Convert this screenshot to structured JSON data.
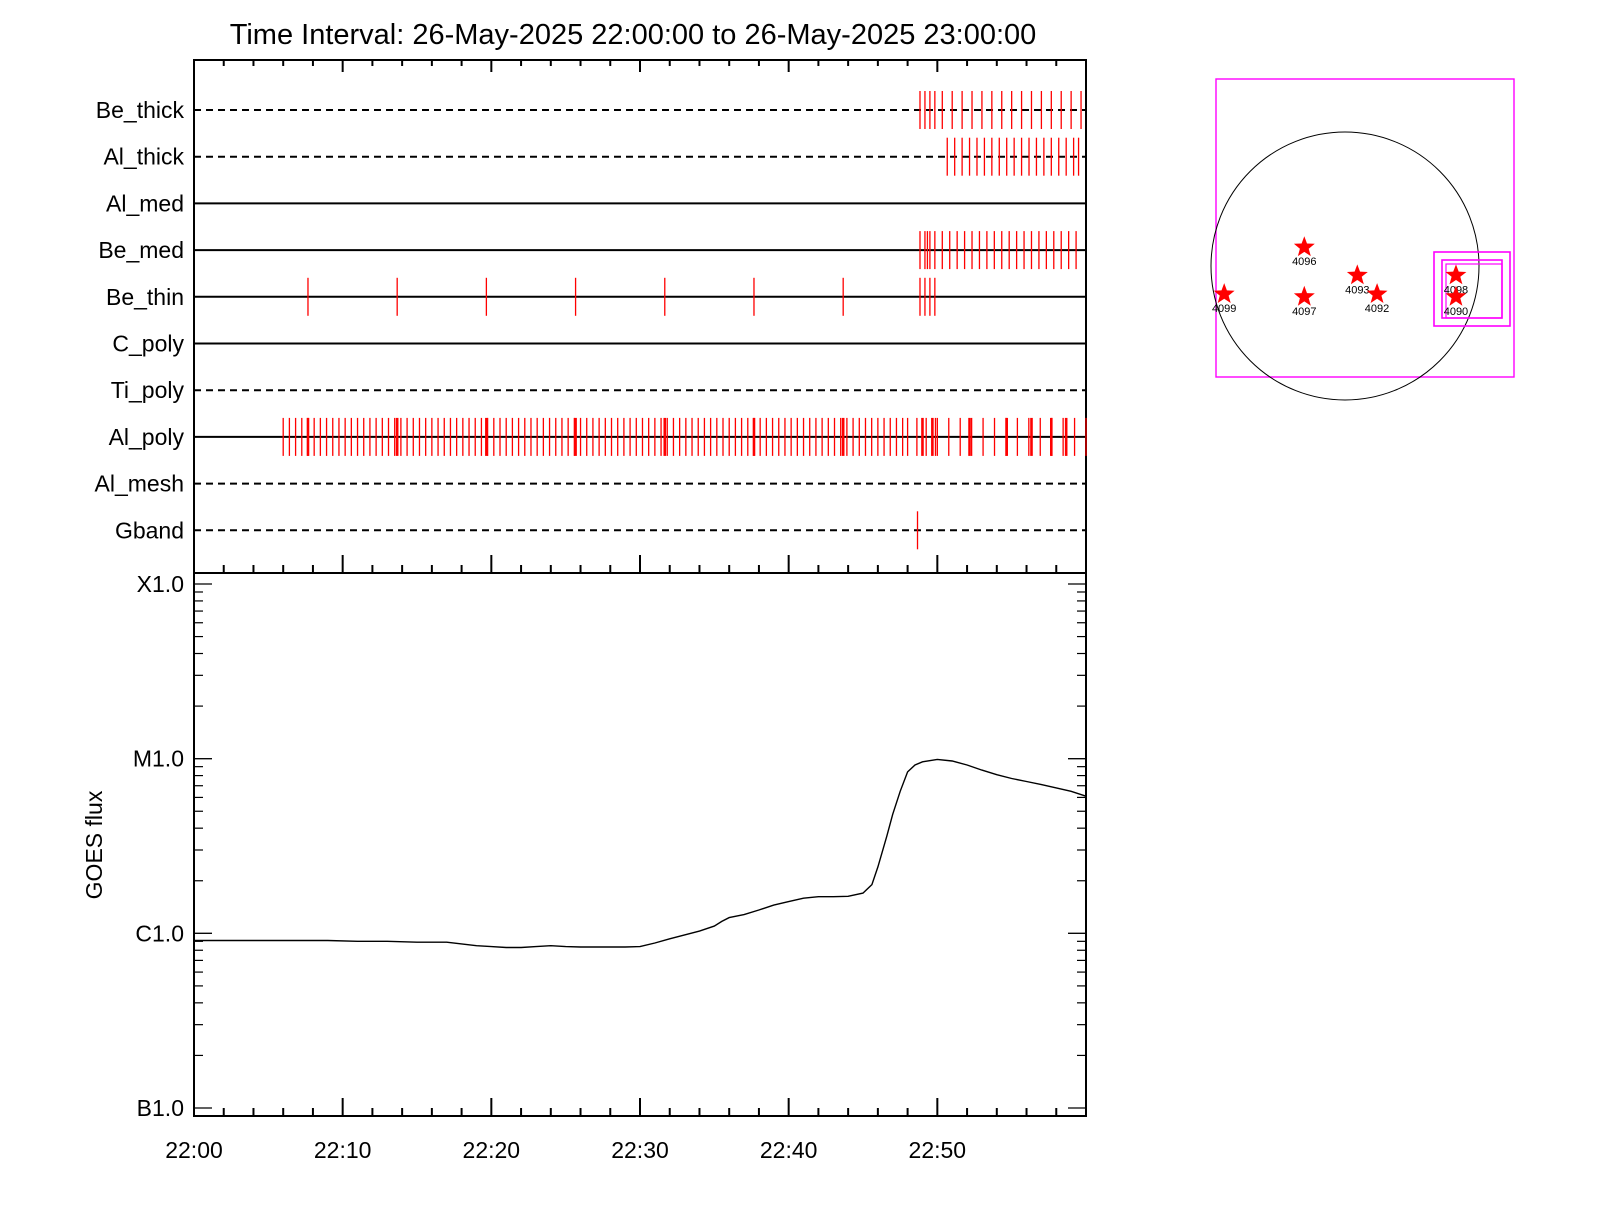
{
  "chart_data": [
    {
      "type": "timeline",
      "title": "Time Interval: 26-May-2025 22:00:00 to 26-May-2025 23:00:00",
      "x_range": [
        "22:00",
        "23:00"
      ],
      "rows": [
        {
          "label": "Be_thick",
          "line": "dashed",
          "events": [
            "22:48:50",
            "22:49:10",
            "22:49:30",
            "22:49:50",
            "22:50:20",
            "22:51:00",
            "22:51:40",
            "22:52:20",
            "22:53:00",
            "22:53:40",
            "22:54:20",
            "22:55:00",
            "22:55:40",
            "22:56:20",
            "22:57:00",
            "22:57:40",
            "22:58:20",
            "22:59:00",
            "22:59:40"
          ]
        },
        {
          "label": "Al_thick",
          "line": "dashed",
          "events": [
            "22:50:40",
            "22:51:10",
            "22:51:40",
            "22:52:10",
            "22:52:40",
            "22:53:10",
            "22:53:40",
            "22:54:10",
            "22:54:40",
            "22:55:10",
            "22:55:40",
            "22:56:10",
            "22:56:40",
            "22:57:10",
            "22:57:40",
            "22:58:10",
            "22:58:40",
            "22:59:10",
            "22:59:30"
          ]
        },
        {
          "label": "Al_med",
          "line": "solid",
          "events": []
        },
        {
          "label": "Be_med",
          "line": "solid",
          "events": [
            "22:48:50",
            "22:49:10",
            "22:49:20",
            "22:49:30",
            "22:49:50",
            "22:50:20",
            "22:50:50",
            "22:51:20",
            "22:51:50",
            "22:52:20",
            "22:52:50",
            "22:53:20",
            "22:53:50",
            "22:54:20",
            "22:54:50",
            "22:55:20",
            "22:55:50",
            "22:56:20",
            "22:56:50",
            "22:57:20",
            "22:57:50",
            "22:58:20",
            "22:58:50",
            "22:59:20"
          ]
        },
        {
          "label": "Be_thin",
          "line": "solid",
          "events": [
            "22:07:40",
            "22:13:40",
            "22:19:40",
            "22:25:40",
            "22:31:40",
            "22:37:40",
            "22:43:40",
            "22:48:50",
            "22:49:10",
            "22:49:30",
            "22:49:50"
          ]
        },
        {
          "label": "C_poly",
          "line": "solid",
          "events": []
        },
        {
          "label": "Ti_poly",
          "line": "dashed",
          "events": []
        },
        {
          "label": "Al_poly",
          "line": "solid",
          "dense_regions": [
            [
              "22:06:00",
              "22:48:00",
              24
            ],
            [
              "22:48:00",
              "22:50:00",
              16
            ],
            [
              "22:50:00",
              "23:00:00",
              13
            ]
          ],
          "emphasized": [
            "22:07:40",
            "22:13:40",
            "22:19:40",
            "22:25:40",
            "22:31:40",
            "22:37:40",
            "22:43:40",
            "22:49:00",
            "22:49:40",
            "22:52:10",
            "22:54:40",
            "22:56:20",
            "22:57:40",
            "22:58:40"
          ]
        },
        {
          "label": "Al_mesh",
          "line": "dashed",
          "events": []
        },
        {
          "label": "Gband",
          "line": "dashed",
          "events": [
            "22:48:40"
          ]
        }
      ]
    },
    {
      "type": "line",
      "ylabel": "GOES flux",
      "yscale": "log",
      "y_ticks": [
        "X1.0",
        "M1.0",
        "C1.0",
        "B1.0"
      ],
      "ylim": [
        1e-07,
        0.0001
      ],
      "x_ticks": [
        "22:00",
        "22:10",
        "22:20",
        "22:30",
        "22:40",
        "22:50"
      ],
      "x_range_min": [
        0,
        60
      ],
      "x_min": [
        0,
        3,
        5,
        7,
        9,
        11,
        13,
        15,
        17,
        18,
        19,
        20,
        21,
        22,
        23,
        24,
        25,
        26,
        27,
        28,
        29,
        30,
        31,
        32,
        33,
        34,
        35,
        35.5,
        36,
        37,
        38,
        39,
        40,
        41,
        42,
        43,
        44,
        45,
        45.6,
        46,
        46.6,
        47,
        47.5,
        48,
        48.5,
        49,
        50,
        51,
        52,
        53,
        54,
        55,
        56,
        57,
        58,
        59,
        60
      ],
      "flux": [
        9.1e-07,
        9.1e-07,
        9.1e-07,
        9.1e-07,
        9.1e-07,
        9e-07,
        9e-07,
        8.9e-07,
        8.9e-07,
        8.7e-07,
        8.5e-07,
        8.4e-07,
        8.3e-07,
        8.3e-07,
        8.4e-07,
        8.5e-07,
        8.4e-07,
        8.35e-07,
        8.35e-07,
        8.35e-07,
        8.35e-07,
        8.4e-07,
        8.8e-07,
        9.3e-07,
        9.8e-07,
        1.03e-06,
        1.1e-06,
        1.17e-06,
        1.23e-06,
        1.28e-06,
        1.36e-06,
        1.45e-06,
        1.52e-06,
        1.59e-06,
        1.62e-06,
        1.62e-06,
        1.63e-06,
        1.7e-06,
        1.9e-06,
        2.4e-06,
        3.6e-06,
        4.8e-06,
        6.5e-06,
        8.4e-06,
        9.2e-06,
        9.6e-06,
        9.9e-06,
        9.7e-06,
        9.2e-06,
        8.6e-06,
        8.1e-06,
        7.7e-06,
        7.4e-06,
        7.1e-06,
        6.8e-06,
        6.5e-06,
        6.1e-06
      ]
    },
    {
      "type": "scatter",
      "points": [
        {
          "label": "4096",
          "x": -0.33,
          "y": 0.14
        },
        {
          "label": "4093",
          "x": 0.1,
          "y": -0.07
        },
        {
          "label": "4092",
          "x": 0.26,
          "y": -0.21
        },
        {
          "label": "4099",
          "x": -0.98,
          "y": -0.21
        },
        {
          "label": "4097",
          "x": -0.33,
          "y": -0.23
        },
        {
          "label": "4098",
          "x": 0.9,
          "y": -0.07
        },
        {
          "label": "4090",
          "x": 0.9,
          "y": -0.23
        }
      ]
    }
  ],
  "colors": {
    "event": "#ff0000",
    "box": "#ff00ff",
    "axis": "#000000",
    "star": "#ff0000"
  }
}
